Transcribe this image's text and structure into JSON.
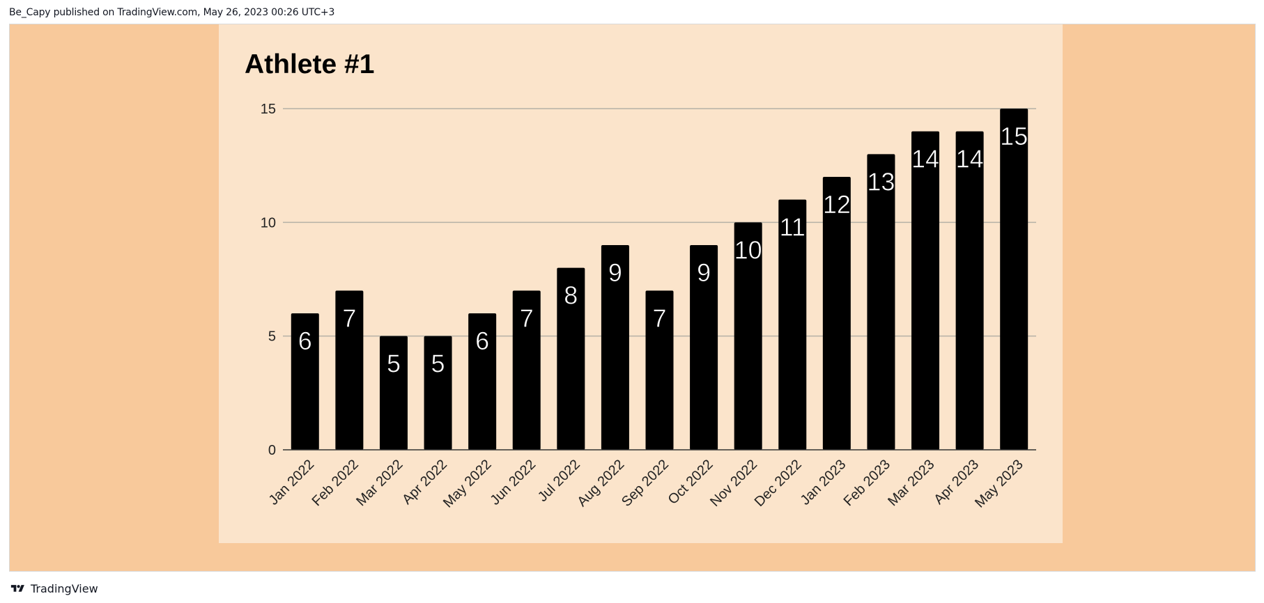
{
  "header": {
    "published_text": "Be_Capy published on TradingView.com, May 26, 2023 00:26 UTC+3"
  },
  "footer": {
    "brand": "TradingView",
    "logo_icon": "tradingview-logo-icon"
  },
  "colors": {
    "outer_background": "#f8c99b",
    "chart_background": "#fbe4cb",
    "bar": "#000000",
    "bar_label": "#ffffff",
    "gridline": "#b5b1a6"
  },
  "chart_data": {
    "type": "bar",
    "title": "Athlete #1",
    "xlabel": "",
    "ylabel": "",
    "categories": [
      "Jan 2022",
      "Feb 2022",
      "Mar 2022",
      "Apr 2022",
      "May 2022",
      "Jun 2022",
      "Jul 2022",
      "Aug 2022",
      "Sep 2022",
      "Oct 2022",
      "Nov 2022",
      "Dec 2022",
      "Jan 2023",
      "Feb 2023",
      "Mar 2023",
      "Apr 2023",
      "May 2023"
    ],
    "values": [
      6,
      7,
      5,
      5,
      6,
      7,
      8,
      9,
      7,
      9,
      10,
      11,
      12,
      13,
      14,
      14,
      15
    ],
    "ylim": [
      0,
      15
    ],
    "yticks": [
      0,
      5,
      10,
      15
    ],
    "grid": true,
    "data_labels": true,
    "legend": "none"
  }
}
